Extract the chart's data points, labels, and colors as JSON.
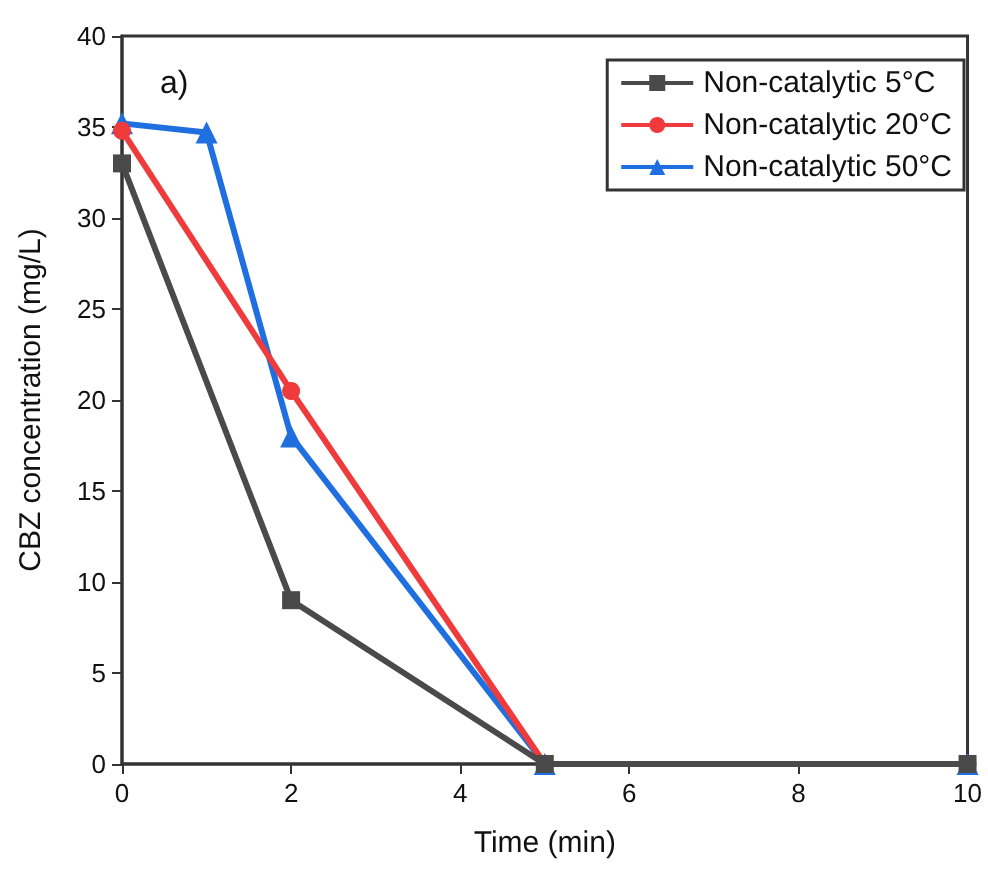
{
  "chart_data": {
    "type": "line",
    "xlabel": "Time (min)",
    "ylabel": "CBZ concentration (mg/L)",
    "annotations": [
      "a)"
    ],
    "xlim": [
      0,
      10
    ],
    "xticks": [
      0,
      2,
      4,
      6,
      8,
      10
    ],
    "ylim": [
      0,
      40
    ],
    "yticks": [
      0,
      5,
      10,
      15,
      20,
      25,
      30,
      35,
      40
    ],
    "grid": false,
    "legend": "top right",
    "line_style": "solid",
    "series": [
      {
        "name": "Non-catalytic 5°C",
        "color": "#4a4a4a",
        "marker": "square",
        "x": [
          0,
          2,
          5,
          10
        ],
        "values": [
          33,
          9,
          0,
          0
        ]
      },
      {
        "name": "Non-catalytic 20°C",
        "color": "#ef3b3b",
        "marker": "circle",
        "x": [
          0,
          2,
          5,
          10
        ],
        "values": [
          34.8,
          20.5,
          0,
          0
        ]
      },
      {
        "name": "Non-catalytic 50°C",
        "color": "#1f6fe0",
        "marker": "triangle",
        "x": [
          0,
          1,
          2,
          5,
          10
        ],
        "values": [
          35.2,
          34.7,
          18,
          0,
          0
        ]
      }
    ]
  }
}
